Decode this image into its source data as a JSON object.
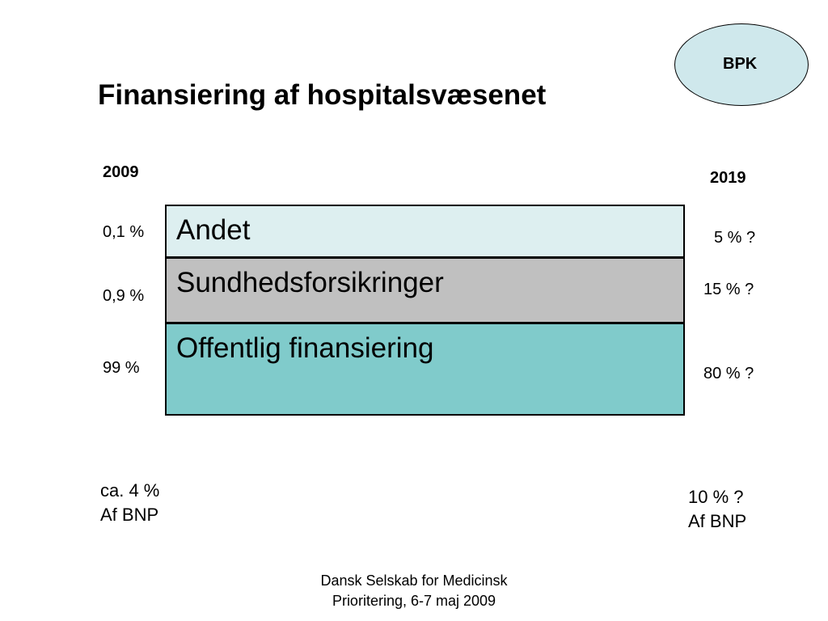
{
  "logo": {
    "text": "BPK",
    "fill": "#cfe8ec"
  },
  "title": "Finansiering af hospitalsvæsenet",
  "years": {
    "left": "2009",
    "right": "2019"
  },
  "segments": [
    {
      "label": "Andet",
      "left": "0,1 %",
      "right": "5 % ?",
      "color": "#ddeff0"
    },
    {
      "label": "Sundhedsforsikringer",
      "left": "0,9 %",
      "right": "15 % ?",
      "color": "#c0c0c0"
    },
    {
      "label": "Offentlig finansiering",
      "left": "99 %",
      "right": "80 % ?",
      "color": "#80cbcb"
    }
  ],
  "bnp": {
    "left": {
      "line1": "ca. 4 %",
      "line2": "Af BNP"
    },
    "right": {
      "line1": "10 % ?",
      "line2": "Af BNP"
    }
  },
  "footer": {
    "line1": "Dansk Selskab for Medicinsk",
    "line2": "Prioritering, 6-7 maj 2009"
  }
}
